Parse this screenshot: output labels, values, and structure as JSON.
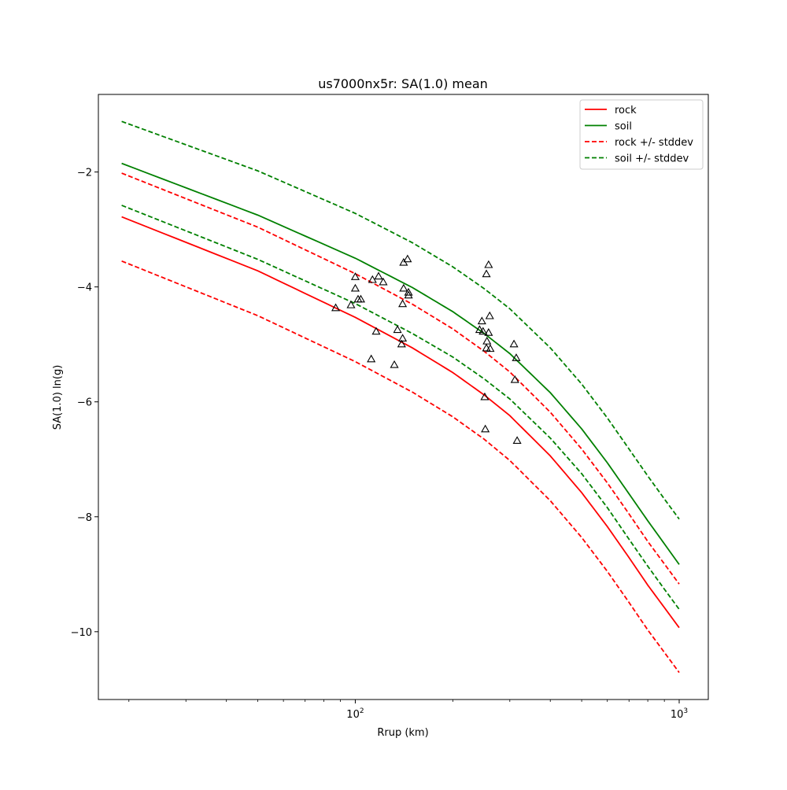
{
  "chart_data": {
    "type": "line",
    "title": "us7000nx5r: SA(1.0) mean",
    "xlabel": "Rrup (km)",
    "ylabel": "SA(1.0) ln(g)",
    "xscale": "log",
    "xlim": [
      16.1,
      1230
    ],
    "ylim": [
      -11.18,
      -0.65
    ],
    "xticks": [
      {
        "value": 100,
        "base": "10",
        "exp": "2"
      },
      {
        "value": 1000,
        "base": "10",
        "exp": "3"
      }
    ],
    "yticks": [
      -10,
      -8,
      -6,
      -4,
      -2
    ],
    "ytick_labels": [
      "−10",
      "−8",
      "−6",
      "−4",
      "−2"
    ],
    "grid": false,
    "legend_position": "top-right",
    "series": [
      {
        "name": "rock",
        "color": "#ff0000",
        "dash": "solid",
        "x": [
          19,
          50,
          100,
          150,
          200,
          250,
          300,
          400,
          500,
          600,
          700,
          800,
          900,
          1000
        ],
        "y": [
          -2.78,
          -3.72,
          -4.53,
          -5.06,
          -5.49,
          -5.88,
          -6.24,
          -6.94,
          -7.58,
          -8.17,
          -8.71,
          -9.19,
          -9.58,
          -9.93
        ]
      },
      {
        "name": "soil",
        "color": "#008000",
        "dash": "solid",
        "x": [
          19,
          50,
          100,
          150,
          200,
          250,
          300,
          400,
          500,
          600,
          700,
          800,
          900,
          1000
        ],
        "y": [
          -1.85,
          -2.75,
          -3.5,
          -4.01,
          -4.43,
          -4.81,
          -5.16,
          -5.84,
          -6.47,
          -7.06,
          -7.6,
          -8.07,
          -8.47,
          -8.83
        ]
      },
      {
        "name": "rock +/- stddev",
        "color": "#ff0000",
        "dash": "dashed",
        "x": [
          19,
          50,
          100,
          150,
          200,
          250,
          300,
          400,
          500,
          600,
          700,
          800,
          900,
          1000
        ],
        "y": [
          -2.02,
          -2.96,
          -3.77,
          -4.3,
          -4.73,
          -5.12,
          -5.48,
          -6.18,
          -6.82,
          -7.41,
          -7.95,
          -8.43,
          -8.82,
          -9.17
        ]
      },
      {
        "name": "",
        "color": "#ff0000",
        "dash": "dashed",
        "x": [
          19,
          50,
          100,
          150,
          200,
          250,
          300,
          400,
          500,
          600,
          700,
          800,
          900,
          1000
        ],
        "y": [
          -3.55,
          -4.5,
          -5.3,
          -5.83,
          -6.26,
          -6.65,
          -7.02,
          -7.72,
          -8.36,
          -8.95,
          -9.49,
          -9.97,
          -10.36,
          -10.71
        ]
      },
      {
        "name": "soil +/- stddev",
        "color": "#008000",
        "dash": "dashed",
        "x": [
          19,
          50,
          100,
          150,
          200,
          250,
          300,
          400,
          500,
          600,
          700,
          800,
          900,
          1000
        ],
        "y": [
          -1.12,
          -1.98,
          -2.72,
          -3.23,
          -3.65,
          -4.03,
          -4.38,
          -5.06,
          -5.69,
          -6.28,
          -6.82,
          -7.29,
          -7.69,
          -8.04
        ]
      },
      {
        "name": "",
        "color": "#008000",
        "dash": "dashed",
        "x": [
          19,
          50,
          100,
          150,
          200,
          250,
          300,
          400,
          500,
          600,
          700,
          800,
          900,
          1000
        ],
        "y": [
          -2.58,
          -3.52,
          -4.29,
          -4.81,
          -5.22,
          -5.6,
          -5.95,
          -6.63,
          -7.25,
          -7.84,
          -8.39,
          -8.86,
          -9.26,
          -9.61
        ]
      }
    ],
    "points": [
      {
        "x": 87,
        "y": -4.37
      },
      {
        "x": 97,
        "y": -4.32
      },
      {
        "x": 100,
        "y": -3.83
      },
      {
        "x": 100,
        "y": -4.03
      },
      {
        "x": 102,
        "y": -4.22
      },
      {
        "x": 104,
        "y": -4.22
      },
      {
        "x": 112,
        "y": -5.26
      },
      {
        "x": 113,
        "y": -3.88
      },
      {
        "x": 116,
        "y": -4.78
      },
      {
        "x": 118,
        "y": -3.82
      },
      {
        "x": 122,
        "y": -3.92
      },
      {
        "x": 132,
        "y": -5.36
      },
      {
        "x": 135,
        "y": -4.75
      },
      {
        "x": 139,
        "y": -5.0
      },
      {
        "x": 140,
        "y": -4.9
      },
      {
        "x": 141,
        "y": -3.58
      },
      {
        "x": 141,
        "y": -4.03
      },
      {
        "x": 140,
        "y": -4.3
      },
      {
        "x": 145,
        "y": -3.52
      },
      {
        "x": 146,
        "y": -4.1
      },
      {
        "x": 146,
        "y": -4.15
      },
      {
        "x": 242,
        "y": -4.75
      },
      {
        "x": 246,
        "y": -4.6
      },
      {
        "x": 248,
        "y": -4.78
      },
      {
        "x": 251,
        "y": -5.92
      },
      {
        "x": 252,
        "y": -6.48
      },
      {
        "x": 254,
        "y": -3.78
      },
      {
        "x": 255,
        "y": -4.95
      },
      {
        "x": 254,
        "y": -5.07
      },
      {
        "x": 258,
        "y": -3.62
      },
      {
        "x": 258,
        "y": -4.8
      },
      {
        "x": 260,
        "y": -4.51
      },
      {
        "x": 261,
        "y": -5.08
      },
      {
        "x": 309,
        "y": -5.0
      },
      {
        "x": 311,
        "y": -5.62
      },
      {
        "x": 314,
        "y": -5.24
      },
      {
        "x": 316,
        "y": -6.68
      }
    ]
  }
}
